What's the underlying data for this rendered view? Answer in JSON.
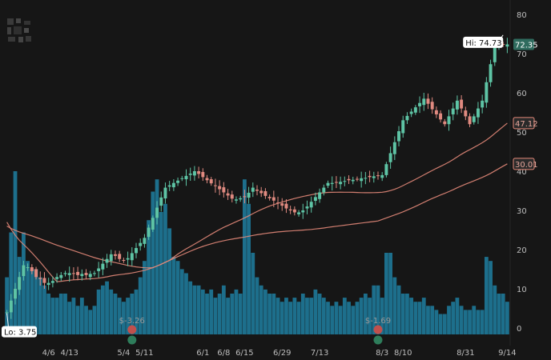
{
  "chart_data": {
    "type": "candlestick",
    "price_axis": {
      "ticks": [
        0,
        10,
        20,
        30,
        40,
        50,
        60,
        70,
        80
      ],
      "range": [
        -3,
        82
      ]
    },
    "volume_scale": {
      "max": 40
    },
    "x_ticks": [
      {
        "label": "4/6",
        "index": 10
      },
      {
        "label": "4/13",
        "index": 15
      },
      {
        "label": "5/4",
        "index": 28
      },
      {
        "label": "5/11",
        "index": 33
      },
      {
        "label": "6/1",
        "index": 47
      },
      {
        "label": "6/8",
        "index": 52
      },
      {
        "label": "6/15",
        "index": 57
      },
      {
        "label": "6/29",
        "index": 66
      },
      {
        "label": "7/13",
        "index": 75
      },
      {
        "label": "8/3",
        "index": 90
      },
      {
        "label": "8/10",
        "index": 95
      },
      {
        "label": "8/31",
        "index": 110
      },
      {
        "label": "9/14",
        "index": 120
      }
    ],
    "candles": {
      "closes": [
        4.0,
        7.0,
        10.0,
        13.0,
        16.0,
        15.5,
        14.5,
        13.0,
        12.5,
        11.5,
        11.5,
        12.0,
        13.0,
        13.5,
        14.0,
        14.0,
        13.8,
        13.5,
        13.8,
        13.5,
        13.8,
        14.0,
        15.2,
        16.4,
        17.6,
        18.8,
        18.4,
        17.6,
        17.2,
        17.8,
        19.1,
        20.4,
        21.7,
        23.0,
        25.6,
        28.1,
        30.7,
        33.3,
        35.8,
        36.4,
        37.0,
        37.6,
        38.2,
        38.8,
        39.4,
        40.0,
        39.3,
        38.5,
        37.7,
        36.9,
        36.2,
        35.4,
        34.6,
        33.8,
        33.0,
        32.8,
        33.1,
        33.5,
        34.5,
        35.8,
        35.0,
        34.4,
        33.7,
        33.1,
        32.5,
        31.8,
        31.2,
        30.5,
        30.0,
        29.5,
        29.5,
        30.0,
        31.0,
        32.2,
        33.4,
        34.6,
        35.8,
        37.0,
        37.0,
        37.2,
        37.3,
        37.5,
        37.7,
        37.8,
        38.0,
        38.2,
        38.3,
        38.5,
        38.7,
        38.8,
        39.0,
        41.8,
        44.6,
        47.4,
        50.2,
        53.0,
        54.1,
        55.2,
        56.3,
        57.4,
        58.5,
        57.2,
        55.8,
        54.5,
        53.2,
        52.0,
        54.0,
        56.0,
        58.0,
        56.0,
        54.0,
        52.0,
        54.0,
        56.0,
        58.0,
        62.7,
        67.3,
        72.0,
        72.2,
        72.3,
        72.35
      ],
      "ohlc": [],
      "up_color": "#5ec4a5",
      "down_color": "#e08a80"
    },
    "volume": {
      "values": [
        14,
        25,
        40,
        19,
        25,
        18,
        16,
        16,
        14,
        12,
        10,
        9,
        9,
        10,
        10,
        8,
        9,
        7,
        9,
        7,
        6,
        7,
        11,
        12,
        13,
        11,
        10,
        9,
        8,
        9,
        10,
        11,
        14,
        18,
        28,
        35,
        38,
        30,
        32,
        26,
        19,
        18,
        16,
        15,
        13,
        12,
        12,
        11,
        10,
        11,
        9,
        10,
        12,
        9,
        10,
        11,
        10,
        38,
        32,
        20,
        14,
        12,
        11,
        10,
        10,
        9,
        8,
        9,
        8,
        9,
        8,
        10,
        9,
        9,
        11,
        10,
        9,
        8,
        7,
        8,
        7,
        9,
        8,
        7,
        8,
        9,
        10,
        9,
        12,
        12,
        9,
        20,
        20,
        14,
        12,
        10,
        10,
        9,
        8,
        8,
        9,
        7,
        7,
        6,
        5,
        5,
        7,
        8,
        9,
        7,
        6,
        6,
        7,
        6,
        6,
        19,
        18,
        12,
        10,
        10,
        8
      ],
      "color": "#1d6f8c"
    },
    "moving_averages": [
      {
        "id": "ma-short",
        "current_label": "47.12",
        "color": "#e58a7a"
      },
      {
        "id": "ma-long",
        "current_label": "30.01",
        "color": "#e58a7a"
      }
    ],
    "annotations": {
      "high": {
        "label": "Hi: 74.73",
        "value": 74.73
      },
      "low": {
        "label": "Lo: 3.75",
        "value": 3.75
      },
      "last_price": {
        "label": "72.35",
        "value": 72.35,
        "color": "#2f6b5e"
      }
    },
    "events": [
      {
        "label": "$-3.26",
        "index": 30,
        "marker_color": "#c0504d"
      },
      {
        "label": "$-1.69",
        "index": 89,
        "marker_color": "#c0504d"
      }
    ],
    "grid": false
  }
}
